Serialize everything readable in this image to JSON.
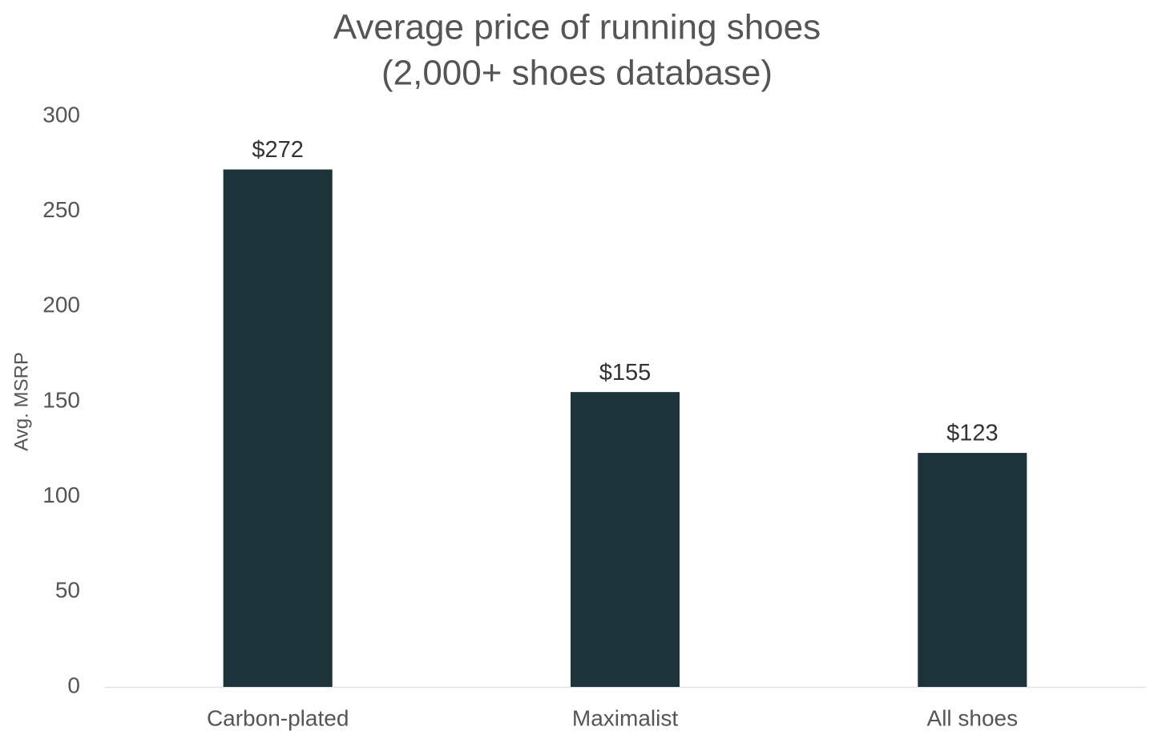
{
  "chart_data": {
    "type": "bar",
    "title": [
      "Average price of running shoes",
      "(2,000+ shoes database)"
    ],
    "y_label": "Avg. MSRP",
    "categories": [
      "Carbon-plated",
      "Maximalist",
      "All shoes"
    ],
    "values": [
      272,
      155,
      123
    ],
    "value_labels": [
      "$272",
      "$155",
      "$123"
    ],
    "color": "#1c3339",
    "ylim": [
      0,
      300
    ],
    "yticks": [
      0,
      50,
      100,
      150,
      200,
      250,
      300
    ],
    "grid": false
  }
}
